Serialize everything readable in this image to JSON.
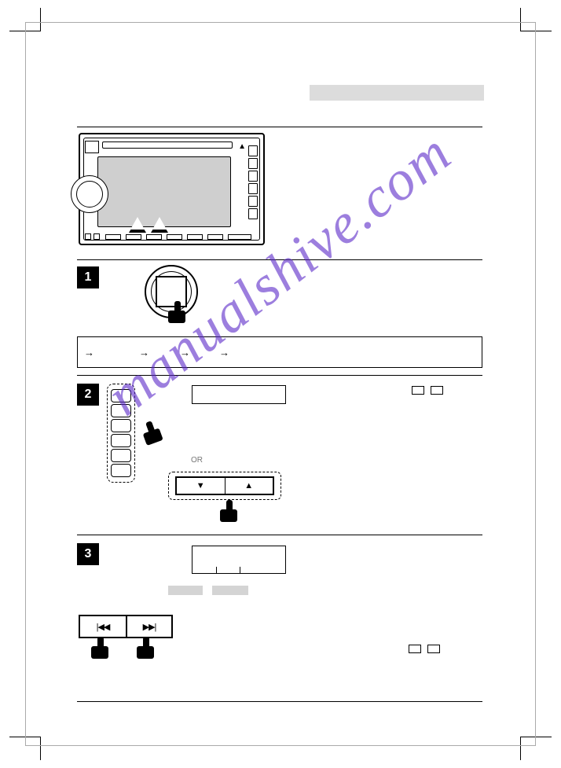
{
  "page": {
    "background": "#ffffff",
    "watermark_text": "manualshive.com",
    "watermark_color": "rgba(90,40,200,0.6)",
    "watermark_angle_deg": -38
  },
  "header": {
    "strip_color": "#dcdcdc"
  },
  "device": {
    "screen_color": "#cfcfcf",
    "preset_count": 6,
    "bottom_button_count": 7
  },
  "steps": [
    {
      "number": "1",
      "kind": "press-knob",
      "flow": {
        "arrows": 4
      }
    },
    {
      "number": "2",
      "kind": "select-preset-or-tune",
      "preset_button_count": 6,
      "tune": {
        "down_symbol": "▼",
        "up_symbol": "▲"
      },
      "side_boxes": 2,
      "or_label": "OR"
    },
    {
      "number": "3",
      "kind": "skip",
      "skip_back_symbol": "|◀◀",
      "skip_fwd_symbol": "▶▶|",
      "grey_label_count": 2,
      "side_boxes": 2
    }
  ],
  "colors": {
    "rule": "#000000",
    "grey_label": "#d4d4d4",
    "pale_guide": "#d0d0d0"
  }
}
